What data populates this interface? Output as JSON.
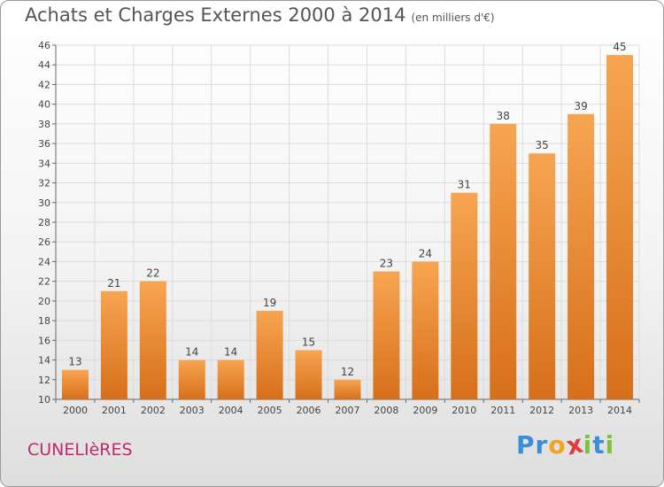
{
  "chart_data": {
    "type": "bar",
    "title": "Achats et Charges Externes 2000 à 2014",
    "subtitle": "(en milliers d'€)",
    "categories": [
      "2000",
      "2001",
      "2002",
      "2003",
      "2004",
      "2005",
      "2006",
      "2007",
      "2008",
      "2009",
      "2010",
      "2011",
      "2012",
      "2013",
      "2014"
    ],
    "values": [
      13,
      21,
      22,
      14,
      14,
      19,
      15,
      12,
      23,
      24,
      31,
      38,
      35,
      39,
      45
    ],
    "ylim": [
      10,
      46
    ],
    "yticks": [
      10,
      12,
      14,
      16,
      18,
      20,
      22,
      24,
      26,
      28,
      30,
      32,
      34,
      36,
      38,
      40,
      42,
      44,
      46
    ],
    "grid": true,
    "colors": {
      "bar_top": "#f7a552",
      "bar_bottom": "#d76f1a",
      "grid": "#dcdcdc",
      "axis": "#666666"
    }
  },
  "footer": {
    "commune": "CUNELIèRES",
    "logo_letters": [
      {
        "char": "P",
        "color": "#3a8dd8"
      },
      {
        "char": "r",
        "color": "#3a8dd8"
      },
      {
        "char": "o",
        "color": "#f2a41c"
      },
      {
        "char": "x",
        "color": "#e23a3a"
      },
      {
        "char": "i",
        "color": "#7cc142"
      },
      {
        "char": "t",
        "color": "#3a8dd8"
      },
      {
        "char": "i",
        "color": "#7cc142"
      }
    ]
  }
}
